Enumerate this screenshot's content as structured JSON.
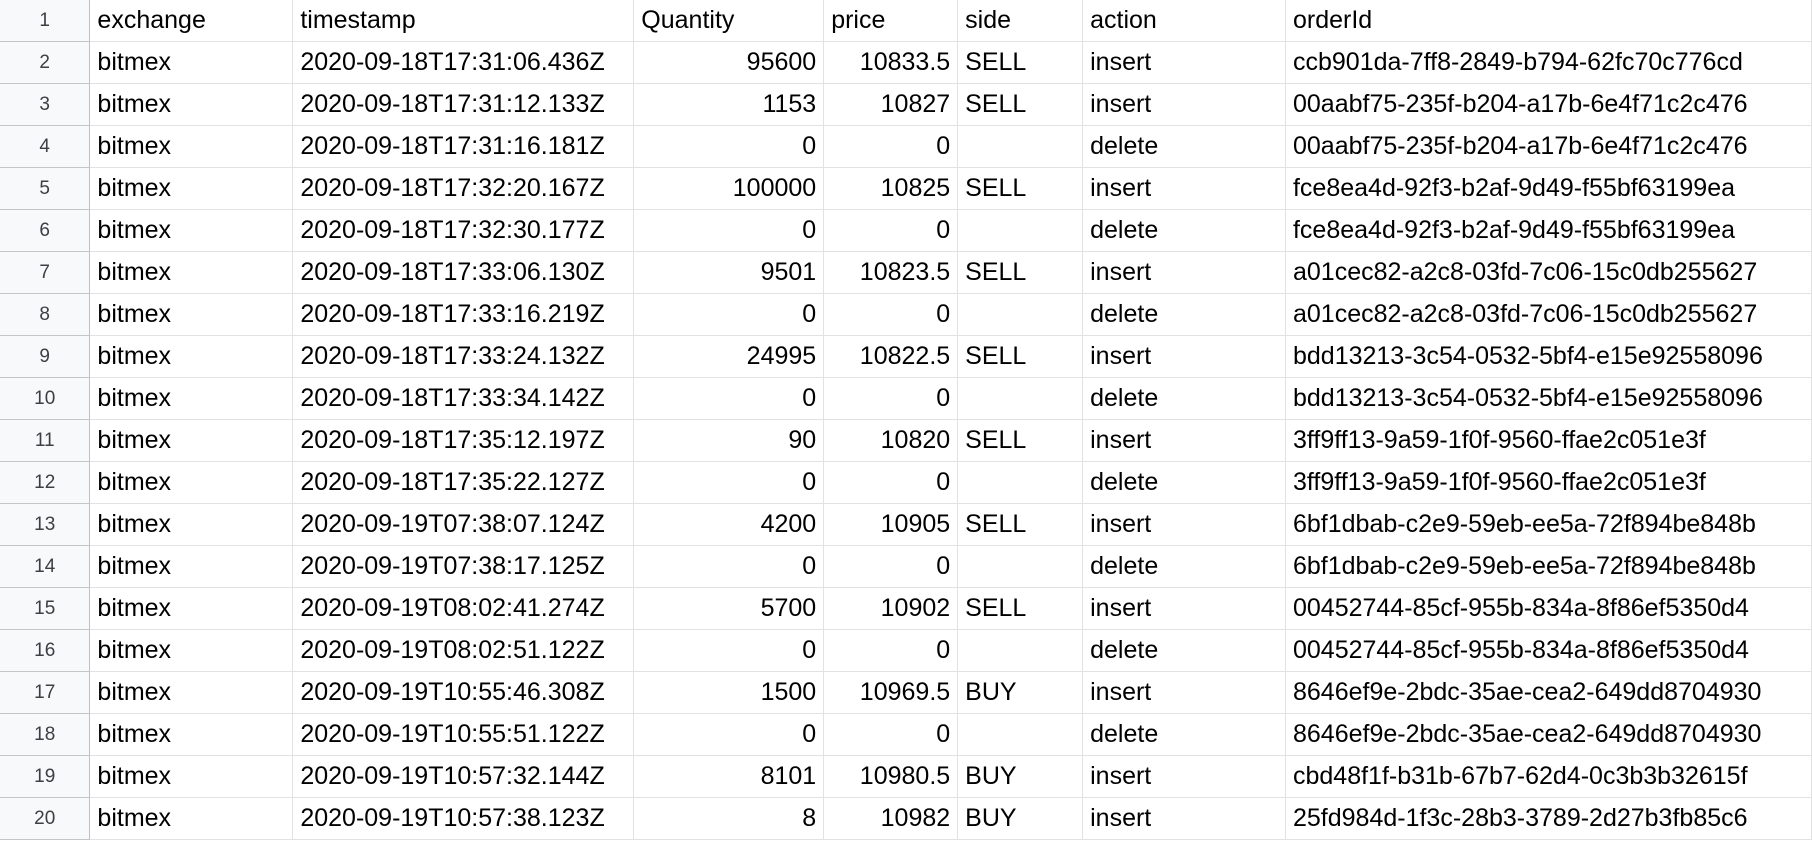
{
  "columns": [
    "exchange",
    "timestamp",
    "Quantity",
    "price",
    "side",
    "action",
    "orderId"
  ],
  "rows": [
    {
      "n": "1",
      "c": [
        "exchange",
        "timestamp",
        "Quantity",
        "price",
        "side",
        "action",
        "orderId"
      ]
    },
    {
      "n": "2",
      "c": [
        "bitmex",
        "2020-09-18T17:31:06.436Z",
        "95600",
        "10833.5",
        "SELL",
        "insert",
        "ccb901da-7ff8-2849-b794-62fc70c776cd"
      ]
    },
    {
      "n": "3",
      "c": [
        "bitmex",
        "2020-09-18T17:31:12.133Z",
        "1153",
        "10827",
        "SELL",
        "insert",
        "00aabf75-235f-b204-a17b-6e4f71c2c476"
      ]
    },
    {
      "n": "4",
      "c": [
        "bitmex",
        "2020-09-18T17:31:16.181Z",
        "0",
        "0",
        "",
        "delete",
        "00aabf75-235f-b204-a17b-6e4f71c2c476"
      ]
    },
    {
      "n": "5",
      "c": [
        "bitmex",
        "2020-09-18T17:32:20.167Z",
        "100000",
        "10825",
        "SELL",
        "insert",
        "fce8ea4d-92f3-b2af-9d49-f55bf63199ea"
      ]
    },
    {
      "n": "6",
      "c": [
        "bitmex",
        "2020-09-18T17:32:30.177Z",
        "0",
        "0",
        "",
        "delete",
        "fce8ea4d-92f3-b2af-9d49-f55bf63199ea"
      ]
    },
    {
      "n": "7",
      "c": [
        "bitmex",
        "2020-09-18T17:33:06.130Z",
        "9501",
        "10823.5",
        "SELL",
        "insert",
        "a01cec82-a2c8-03fd-7c06-15c0db255627"
      ]
    },
    {
      "n": "8",
      "c": [
        "bitmex",
        "2020-09-18T17:33:16.219Z",
        "0",
        "0",
        "",
        "delete",
        "a01cec82-a2c8-03fd-7c06-15c0db255627"
      ]
    },
    {
      "n": "9",
      "c": [
        "bitmex",
        "2020-09-18T17:33:24.132Z",
        "24995",
        "10822.5",
        "SELL",
        "insert",
        "bdd13213-3c54-0532-5bf4-e15e92558096"
      ]
    },
    {
      "n": "10",
      "c": [
        "bitmex",
        "2020-09-18T17:33:34.142Z",
        "0",
        "0",
        "",
        "delete",
        "bdd13213-3c54-0532-5bf4-e15e92558096"
      ]
    },
    {
      "n": "11",
      "c": [
        "bitmex",
        "2020-09-18T17:35:12.197Z",
        "90",
        "10820",
        "SELL",
        "insert",
        "3ff9ff13-9a59-1f0f-9560-ffae2c051e3f"
      ]
    },
    {
      "n": "12",
      "c": [
        "bitmex",
        "2020-09-18T17:35:22.127Z",
        "0",
        "0",
        "",
        "delete",
        "3ff9ff13-9a59-1f0f-9560-ffae2c051e3f"
      ]
    },
    {
      "n": "13",
      "c": [
        "bitmex",
        "2020-09-19T07:38:07.124Z",
        "4200",
        "10905",
        "SELL",
        "insert",
        "6bf1dbab-c2e9-59eb-ee5a-72f894be848b"
      ]
    },
    {
      "n": "14",
      "c": [
        "bitmex",
        "2020-09-19T07:38:17.125Z",
        "0",
        "0",
        "",
        "delete",
        "6bf1dbab-c2e9-59eb-ee5a-72f894be848b"
      ]
    },
    {
      "n": "15",
      "c": [
        "bitmex",
        "2020-09-19T08:02:41.274Z",
        "5700",
        "10902",
        "SELL",
        "insert",
        "00452744-85cf-955b-834a-8f86ef5350d4"
      ]
    },
    {
      "n": "16",
      "c": [
        "bitmex",
        "2020-09-19T08:02:51.122Z",
        "0",
        "0",
        "",
        "delete",
        "00452744-85cf-955b-834a-8f86ef5350d4"
      ]
    },
    {
      "n": "17",
      "c": [
        "bitmex",
        "2020-09-19T10:55:46.308Z",
        "1500",
        "10969.5",
        "BUY",
        "insert",
        "8646ef9e-2bdc-35ae-cea2-649dd8704930"
      ]
    },
    {
      "n": "18",
      "c": [
        "bitmex",
        "2020-09-19T10:55:51.122Z",
        "0",
        "0",
        "",
        "delete",
        "8646ef9e-2bdc-35ae-cea2-649dd8704930"
      ]
    },
    {
      "n": "19",
      "c": [
        "bitmex",
        "2020-09-19T10:57:32.144Z",
        "8101",
        "10980.5",
        "BUY",
        "insert",
        "cbd48f1f-b31b-67b7-62d4-0c3b3b32615f"
      ]
    },
    {
      "n": "20",
      "c": [
        "bitmex",
        "2020-09-19T10:57:38.123Z",
        "8",
        "10982",
        "BUY",
        "insert",
        "25fd984d-1f3c-28b3-3789-2d27b3fb85c6"
      ]
    }
  ]
}
